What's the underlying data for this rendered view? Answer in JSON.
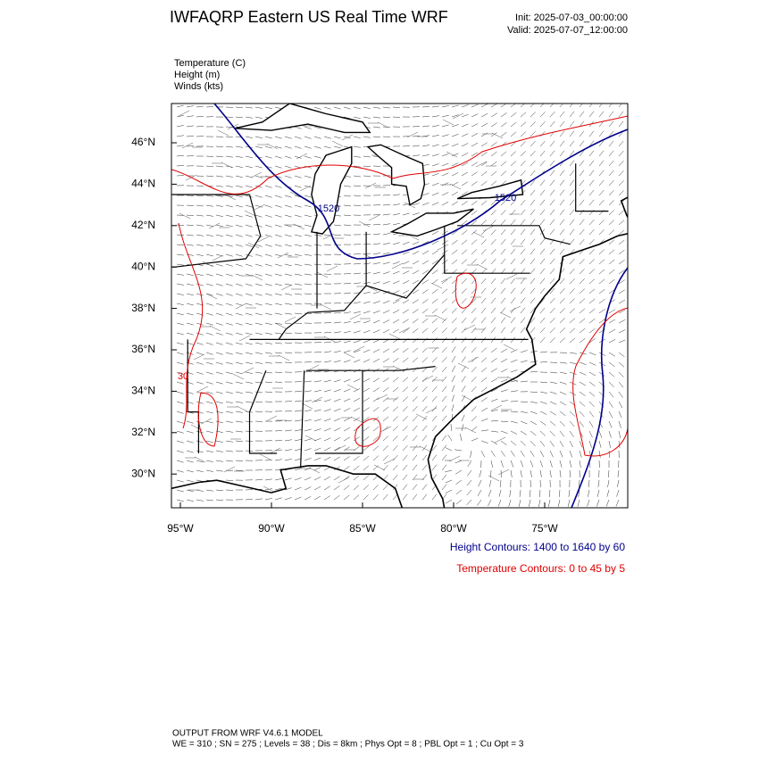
{
  "header": {
    "title": "IWFAQRP Eastern US Real Time WRF",
    "init": "Init: 2025-07-03_00:00:00",
    "valid": "Valid: 2025-07-07_12:00:00"
  },
  "fields": [
    "Temperature   (C)",
    "Height   (m)",
    "Winds   (kts)"
  ],
  "map": {
    "lat_labels": [
      "46°N",
      "44°N",
      "42°N",
      "40°N",
      "38°N",
      "36°N",
      "34°N",
      "32°N",
      "30°N"
    ],
    "lon_labels": [
      "95°W",
      "90°W",
      "85°W",
      "80°W",
      "75°W"
    ],
    "contour_labels": [
      "1520",
      "1520",
      "30"
    ]
  },
  "legend": {
    "height": "Height Contours: 1400 to 1640 by 60",
    "temperature": "Temperature Contours: 0 to 45 by 5"
  },
  "footer": [
    "OUTPUT FROM WRF V4.6.1 MODEL",
    "WE = 310 ; SN = 275 ; Levels = 38 ; Dis = 8km ; Phys Opt = 8 ; PBL Opt = 1 ; Cu Opt = 3"
  ]
}
